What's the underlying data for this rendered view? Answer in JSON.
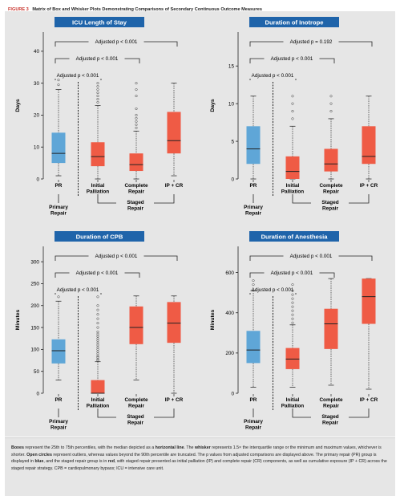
{
  "figure": {
    "number": "FIGURE 3",
    "title": "Matrix of Box and Whisker Plots Demonstrating Comparisons of Secondary Continuous Outcome Measures"
  },
  "colors": {
    "primary_repair": "#5fa6d7",
    "staged_repair": "#ef5b45",
    "title_bar": "#1f64aa"
  },
  "groups": {
    "categories": [
      "PR",
      "Initial Palliation",
      "Complete Repair",
      "IP + CR"
    ],
    "primary_bracket": "Primary Repair",
    "staged_bracket": "Staged Repair"
  },
  "caption": {
    "boxes_lead": "Boxes",
    "boxes_text": " represent the 25th to 75th percentiles, with the median depicted as a ",
    "median_term": "horizontal line",
    "whisker_lead": ". The ",
    "whisker_term": "whisker",
    "whisker_text": " represents 1.5× the interquartile range or the minimum and maximum values, whichever is shorter. ",
    "outlier_term": "Open circles",
    "outlier_text": " represent outliers, whereas values beyond the 90th percentile are truncated. The p values from adjusted comparisons are displayed above. The primary repair (PR) group is displayed in ",
    "blue_term": "blue",
    "mid_text": ", and the staged repair group is in ",
    "red_term": "red",
    "end_text": ", with staged repair presented as initial palliation (IP) and complete repair (CR) components, as well as cumulative exposure (IP + CR) across the staged repair strategy. CPB = cardiopulmonary bypass; ICU = intensive care unit."
  },
  "chart_data": [
    {
      "type": "box",
      "title": "ICU Length of Stay",
      "ylabel": "Days",
      "ylim": [
        0,
        46
      ],
      "yticks": [
        0,
        10,
        20,
        30,
        40
      ],
      "pvalues": [
        "Adjusted p < 0.001",
        "Adjusted p < 0.001",
        "Adjusted p < 0.001"
      ],
      "boxes": [
        {
          "category": "PR",
          "whisker_low": 1,
          "q1": 5,
          "median": 8,
          "q3": 14.5,
          "whisker_high": 28,
          "outliers": [
            29.5,
            31
          ]
        },
        {
          "category": "Initial Palliation",
          "whisker_low": 0,
          "q1": 4,
          "median": 7,
          "q3": 11.5,
          "whisker_high": 23,
          "outliers": [
            24,
            25,
            26,
            27,
            28,
            29,
            30
          ]
        },
        {
          "category": "Complete Repair",
          "whisker_low": 0,
          "q1": 2.5,
          "median": 4.5,
          "q3": 8,
          "whisker_high": 15,
          "outliers": [
            16,
            17,
            18,
            19,
            20,
            22,
            26,
            28,
            30
          ]
        },
        {
          "category": "IP + CR",
          "whisker_low": 1,
          "q1": 8,
          "median": 12,
          "q3": 21,
          "whisker_high": 30,
          "outliers": []
        }
      ]
    },
    {
      "type": "box",
      "title": "Duration of Inotrope",
      "ylabel": "Days",
      "ylim": [
        0,
        19.5
      ],
      "yticks": [
        0,
        5,
        10,
        15
      ],
      "pvalues": [
        "Adjusted p = 0.192",
        "Adjusted p < 0.001",
        "Adjusted p < 0.001"
      ],
      "boxes": [
        {
          "category": "PR",
          "whisker_low": 0,
          "q1": 2,
          "median": 4,
          "q3": 7,
          "whisker_high": 11,
          "outliers": []
        },
        {
          "category": "Initial Palliation",
          "whisker_low": 0,
          "q1": 0,
          "median": 1,
          "q3": 3,
          "whisker_high": 7,
          "outliers": [
            8,
            9,
            10,
            11
          ]
        },
        {
          "category": "Complete Repair",
          "whisker_low": 0,
          "q1": 1,
          "median": 2,
          "q3": 4,
          "whisker_high": 8,
          "outliers": [
            9,
            10,
            11
          ]
        },
        {
          "category": "IP + CR",
          "whisker_low": 0,
          "q1": 2,
          "median": 3,
          "q3": 7,
          "whisker_high": 11,
          "outliers": []
        }
      ]
    },
    {
      "type": "box",
      "title": "Duration of CPB",
      "ylabel": "Minutes",
      "ylim": [
        0,
        335
      ],
      "yticks": [
        0,
        50,
        100,
        150,
        200,
        250,
        300
      ],
      "pvalues": [
        "Adjusted p < 0.001",
        "Adjusted p < 0.001",
        "Adjusted p < 0.001"
      ],
      "boxes": [
        {
          "category": "PR",
          "whisker_low": 30,
          "q1": 68,
          "median": 97,
          "q3": 123,
          "whisker_high": 210,
          "outliers": [
            220
          ]
        },
        {
          "category": "Initial Palliation",
          "whisker_low": 0,
          "q1": 0,
          "median": 0,
          "q3": 30,
          "whisker_high": 72,
          "outliers": [
            75,
            78,
            82,
            85,
            90,
            95,
            100,
            105,
            110,
            115,
            120,
            125,
            130,
            135,
            140,
            150,
            160,
            170,
            180,
            190,
            200,
            220
          ]
        },
        {
          "category": "Complete Repair",
          "whisker_low": 30,
          "q1": 112,
          "median": 150,
          "q3": 198,
          "whisker_high": 222,
          "outliers": []
        },
        {
          "category": "IP + CR",
          "whisker_low": 0,
          "q1": 115,
          "median": 160,
          "q3": 208,
          "whisker_high": 222,
          "outliers": []
        }
      ]
    },
    {
      "type": "box",
      "title": "Duration of Anesthesia",
      "ylabel": "Minutes",
      "ylim": [
        0,
        730
      ],
      "yticks": [
        0,
        200,
        400,
        600
      ],
      "pvalues": [
        "Adjusted p < 0.001",
        "Adjusted p < 0.001",
        "Adjusted p < 0.001"
      ],
      "boxes": [
        {
          "category": "PR",
          "whisker_low": 30,
          "q1": 150,
          "median": 215,
          "q3": 310,
          "whisker_high": 510,
          "outliers": [
            540,
            560
          ]
        },
        {
          "category": "Initial Palliation",
          "whisker_low": 30,
          "q1": 120,
          "median": 170,
          "q3": 225,
          "whisker_high": 340,
          "outliers": [
            350,
            370,
            390,
            410,
            430,
            450,
            470,
            490,
            510,
            540
          ]
        },
        {
          "category": "Complete Repair",
          "whisker_low": 40,
          "q1": 220,
          "median": 345,
          "q3": 420,
          "whisker_high": 570,
          "outliers": []
        },
        {
          "category": "IP + CR",
          "whisker_low": 20,
          "q1": 345,
          "median": 480,
          "q3": 570,
          "whisker_high": 570,
          "outliers": []
        }
      ]
    }
  ]
}
